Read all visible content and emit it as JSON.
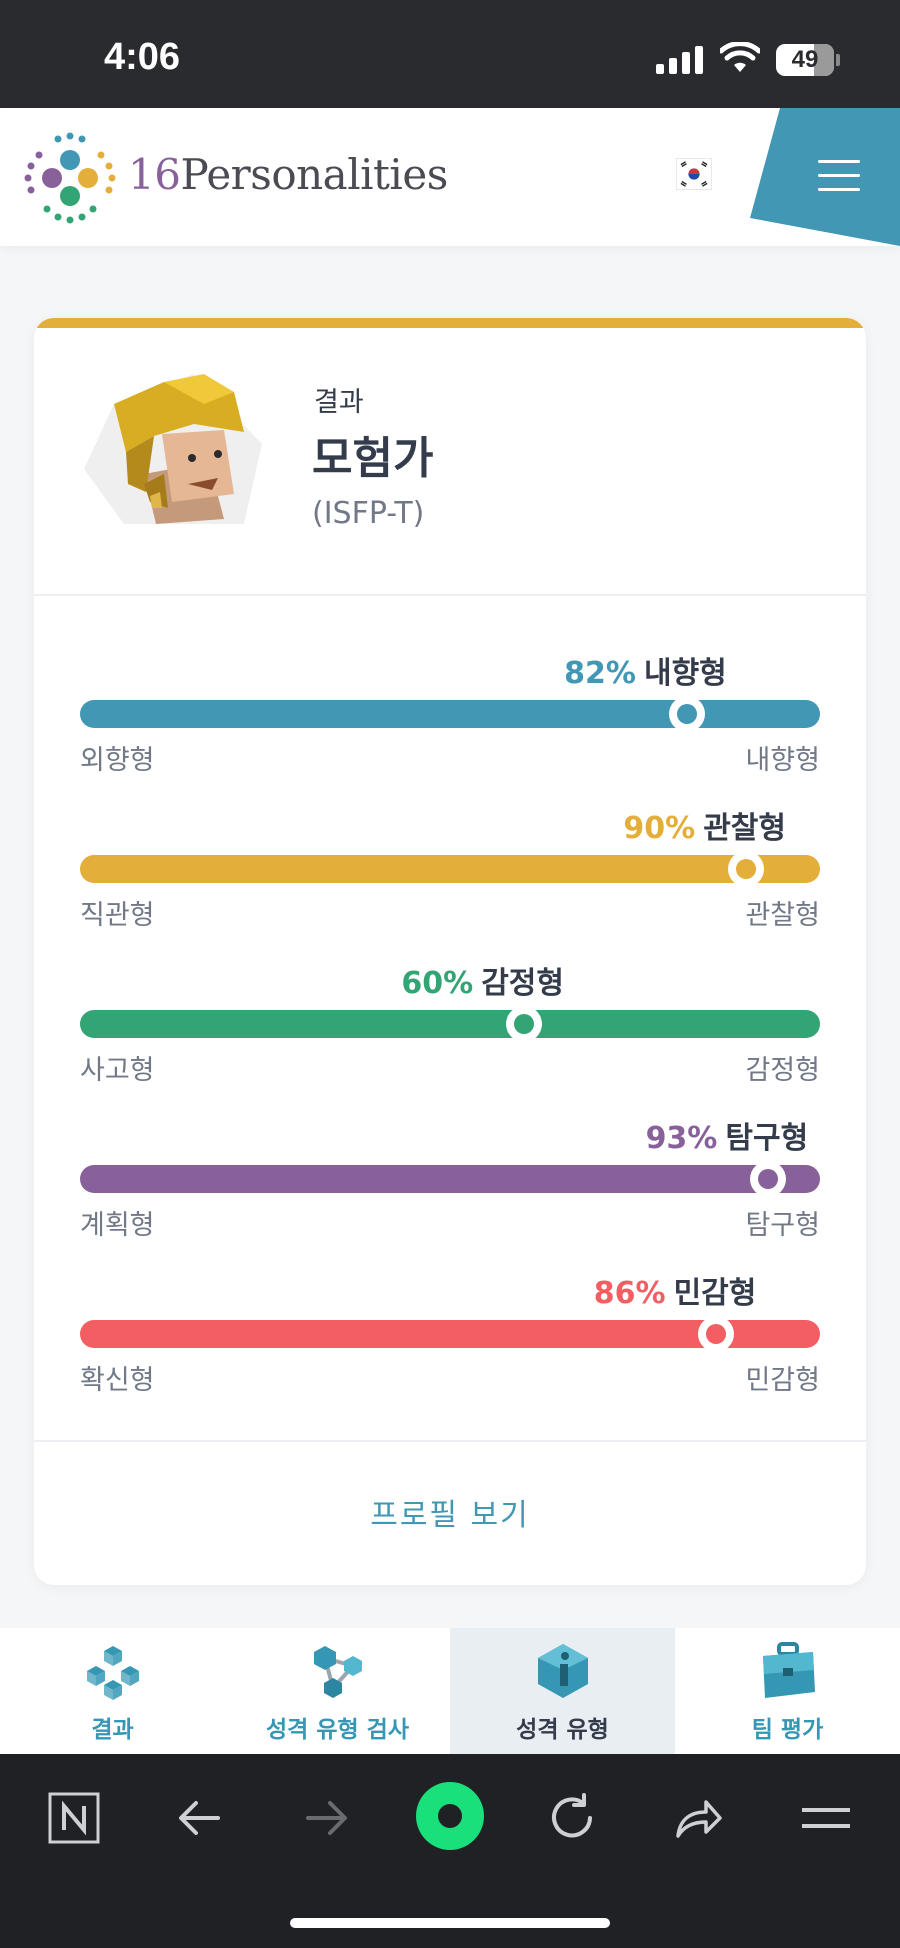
{
  "status_bar": {
    "time": "4:06",
    "battery": "49"
  },
  "header": {
    "logo_number": "16",
    "logo_word": "Personalities"
  },
  "result": {
    "label": "결과",
    "type_name": "모험가",
    "type_code": "(ISFP-T)"
  },
  "traits": [
    {
      "percent": "82%",
      "name": "내향형",
      "left": "외향형",
      "right": "내향형",
      "value": 0.82,
      "color": "#4298b4"
    },
    {
      "percent": "90%",
      "name": "관찰형",
      "left": "직관형",
      "right": "관찰형",
      "value": 0.9,
      "color": "#e4ae3a"
    },
    {
      "percent": "60%",
      "name": "감정형",
      "left": "사고형",
      "right": "감정형",
      "value": 0.6,
      "color": "#33a474"
    },
    {
      "percent": "93%",
      "name": "탐구형",
      "left": "계획형",
      "right": "탐구형",
      "value": 0.93,
      "color": "#88619a"
    },
    {
      "percent": "86%",
      "name": "민감형",
      "left": "확신형",
      "right": "민감형",
      "value": 0.86,
      "color": "#f25e62"
    }
  ],
  "profile_link": "프로필 보기",
  "tabs": [
    {
      "label": "결과",
      "icon": "cubes-icon"
    },
    {
      "label": "성격 유형 검사",
      "icon": "molecule-icon"
    },
    {
      "label": "성격 유형",
      "icon": "info-gem-icon",
      "active": true
    },
    {
      "label": "팀 평가",
      "icon": "briefcase-icon"
    }
  ],
  "browser_icons": [
    "naver-n-icon",
    "back-arrow-icon",
    "forward-arrow-icon",
    "green-dot-icon",
    "reload-icon",
    "share-icon",
    "menu-icon"
  ]
}
